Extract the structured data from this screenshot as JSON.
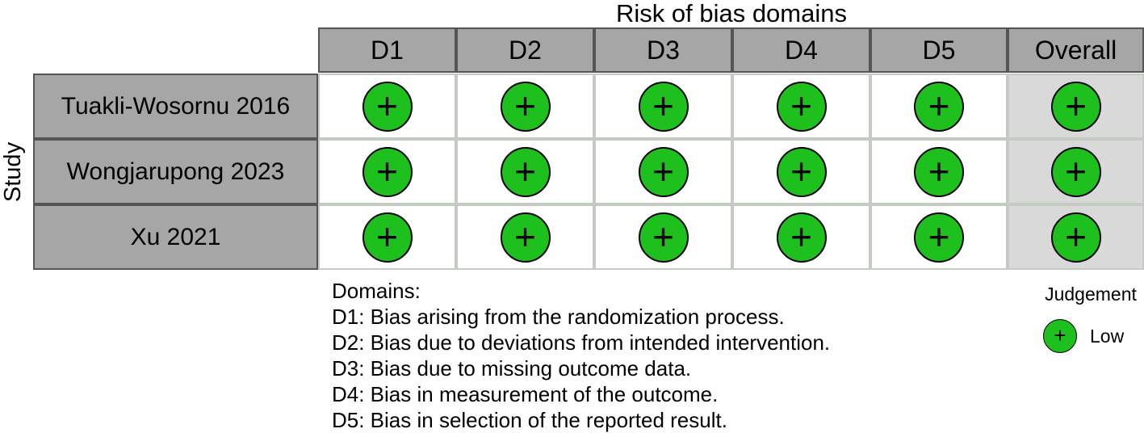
{
  "title": "Risk of bias domains",
  "y_label": "Study",
  "columns": [
    "D1",
    "D2",
    "D3",
    "D4",
    "D5",
    "Overall"
  ],
  "studies": [
    {
      "name": "Tuakli-Wosornu 2016",
      "judgements": [
        "+",
        "+",
        "+",
        "+",
        "+",
        "+"
      ]
    },
    {
      "name": "Wongjarupong 2023",
      "judgements": [
        "+",
        "+",
        "+",
        "+",
        "+",
        "+"
      ]
    },
    {
      "name": "Xu 2021",
      "judgements": [
        "+",
        "+",
        "+",
        "+",
        "+",
        "+"
      ]
    }
  ],
  "domains_heading": "Domains:",
  "domain_descriptions": [
    "D1: Bias arising from the randomization process.",
    "D2: Bias due to deviations from intended intervention.",
    "D3: Bias due to missing outcome data.",
    "D4: Bias in measurement of the outcome.",
    "D5: Bias in selection of the reported result."
  ],
  "legend": {
    "title": "Judgement",
    "items": [
      {
        "symbol": "+",
        "label": "Low",
        "color": "#1ec01e"
      }
    ]
  },
  "colors": {
    "low": "#1ec01e",
    "header_bg": "#a6a6a6",
    "overall_bg": "#d9d9d9",
    "grid_border": "#c3cbc3",
    "header_border": "#555555"
  }
}
